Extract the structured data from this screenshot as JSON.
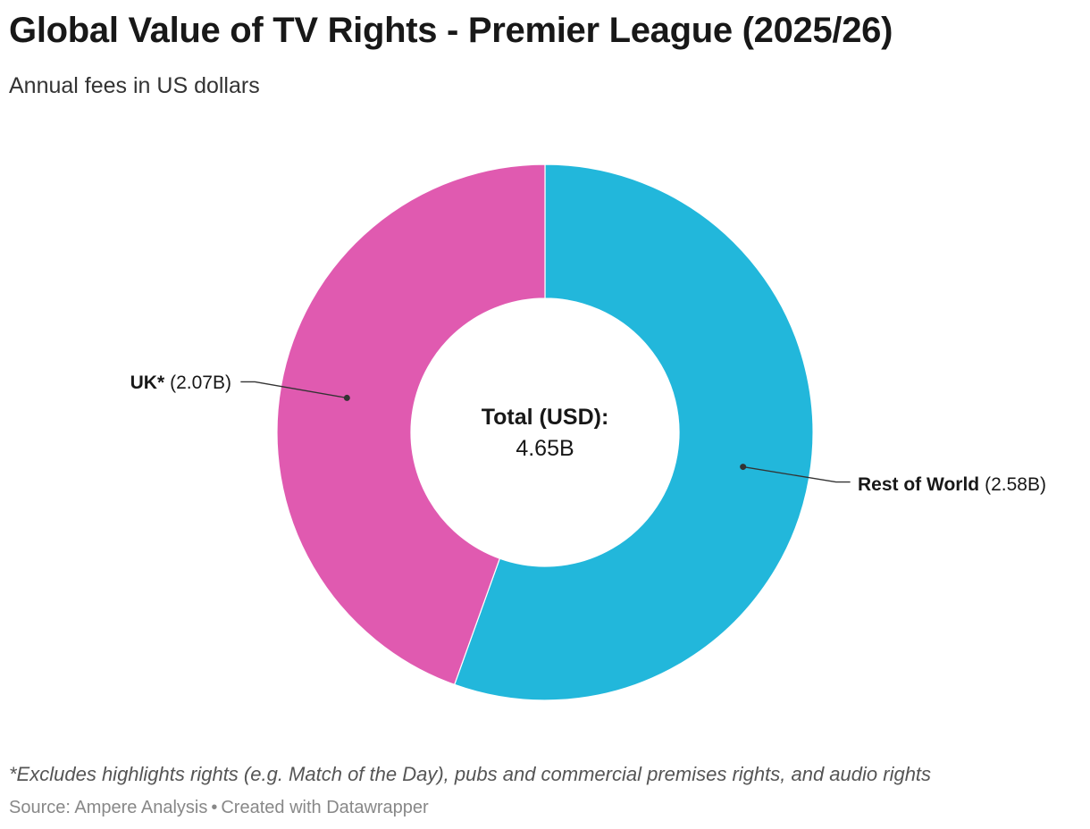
{
  "header": {
    "title": "Global Value of TV Rights - Premier League (2025/26)",
    "subtitle": "Annual fees in US dollars"
  },
  "chart_data": {
    "type": "donut",
    "unit": "USD",
    "slices": [
      {
        "name": "Rest of World",
        "value": 2.58,
        "display": "(2.58B)",
        "color": "#22b7db"
      },
      {
        "name": "UK*",
        "value": 2.07,
        "display": "(2.07B)",
        "color": "#e05ab0"
      }
    ],
    "center_label": "Total (USD):",
    "center_value": "4.65B"
  },
  "footer": {
    "note": "*Excludes highlights rights (e.g. Match of the Day), pubs and commercial premises rights, and audio rights",
    "source_label": "Source: Ampere Analysis",
    "separator": "•",
    "credit": "Created with Datawrapper"
  }
}
